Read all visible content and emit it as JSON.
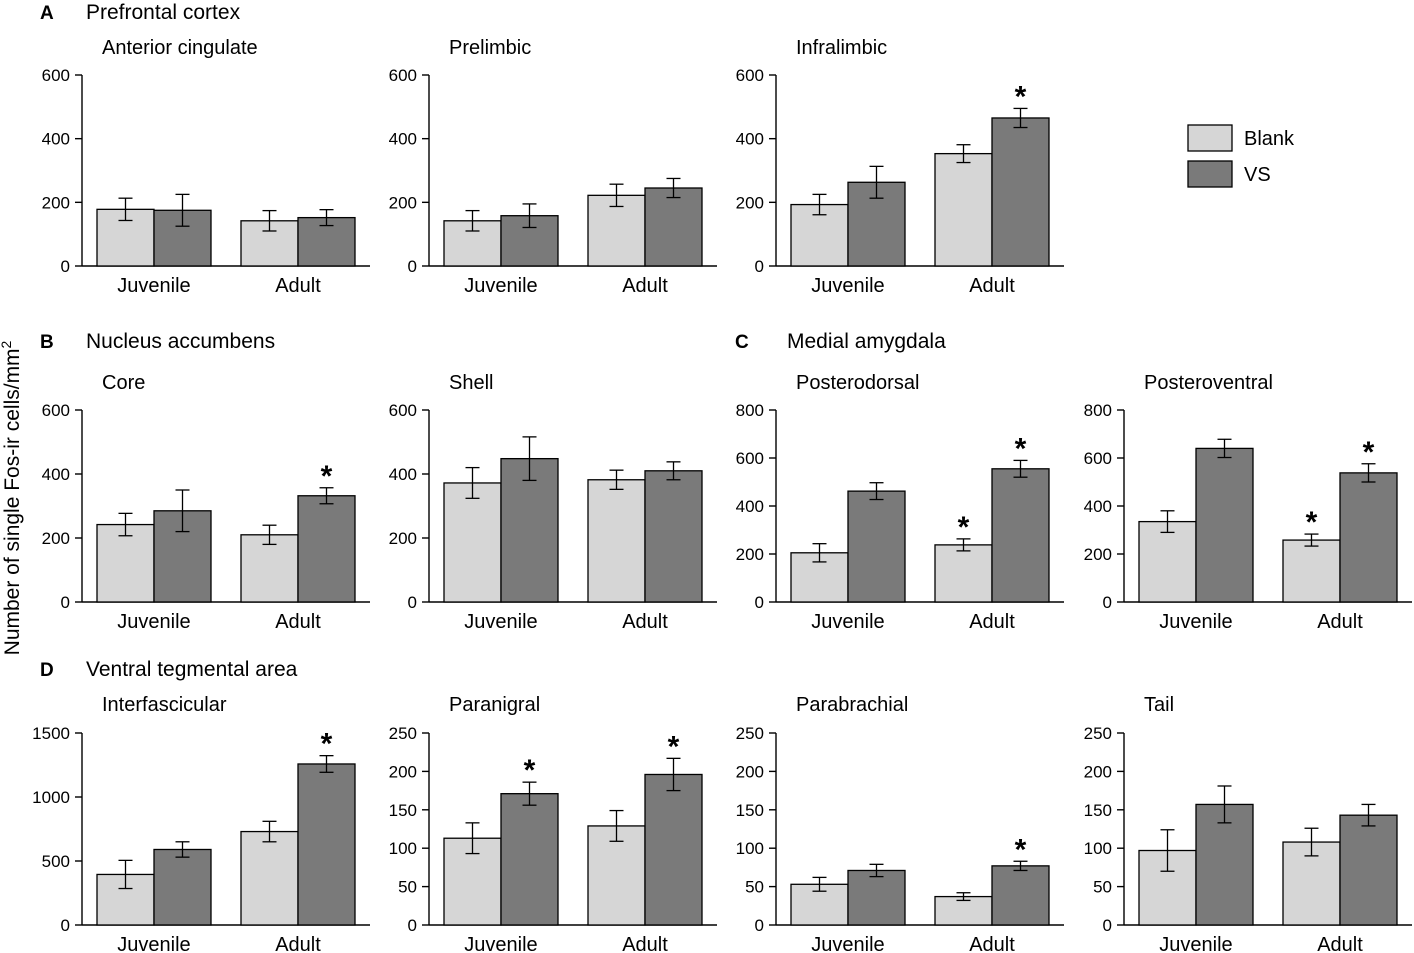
{
  "figure": {
    "y_axis_label": "Number of single Fos-ir cells/mm",
    "y_axis_label_superscript": "2",
    "legend": [
      {
        "name": "Blank",
        "color": "#d6d6d6"
      },
      {
        "name": "VS",
        "color": "#7a7a7a"
      }
    ],
    "significance_marker": "*",
    "sections": [
      {
        "letter": "A",
        "title": "Prefrontal cortex"
      },
      {
        "letter": "B",
        "title": "Nucleus accumbens"
      },
      {
        "letter": "C",
        "title": "Medial amygdala"
      },
      {
        "letter": "D",
        "title": "Ventral tegmental area"
      }
    ]
  },
  "chart_data": [
    {
      "type": "bar",
      "section": "A",
      "title": "Anterior cingulate",
      "categories": [
        "Juvenile",
        "Adult"
      ],
      "ylim": [
        0,
        600
      ],
      "yticks": [
        0,
        200,
        400,
        600
      ],
      "series": [
        {
          "name": "Blank",
          "values": [
            178,
            142
          ],
          "errors": [
            35,
            32
          ]
        },
        {
          "name": "VS",
          "values": [
            175,
            152
          ],
          "errors": [
            50,
            25
          ]
        }
      ],
      "significant": [
        [
          false,
          false
        ],
        [
          false,
          false
        ]
      ]
    },
    {
      "type": "bar",
      "section": "A",
      "title": "Prelimbic",
      "categories": [
        "Juvenile",
        "Adult"
      ],
      "ylim": [
        0,
        600
      ],
      "yticks": [
        0,
        200,
        400,
        600
      ],
      "series": [
        {
          "name": "Blank",
          "values": [
            142,
            222
          ],
          "errors": [
            32,
            35
          ]
        },
        {
          "name": "VS",
          "values": [
            158,
            245
          ],
          "errors": [
            37,
            30
          ]
        }
      ],
      "significant": [
        [
          false,
          false
        ],
        [
          false,
          false
        ]
      ]
    },
    {
      "type": "bar",
      "section": "A",
      "title": "Infralimbic",
      "categories": [
        "Juvenile",
        "Adult"
      ],
      "ylim": [
        0,
        600
      ],
      "yticks": [
        0,
        200,
        400,
        600
      ],
      "series": [
        {
          "name": "Blank",
          "values": [
            193,
            353
          ],
          "errors": [
            32,
            28
          ]
        },
        {
          "name": "VS",
          "values": [
            263,
            465
          ],
          "errors": [
            50,
            30
          ]
        }
      ],
      "significant": [
        [
          false,
          false
        ],
        [
          false,
          true
        ]
      ]
    },
    {
      "type": "bar",
      "section": "B",
      "title": "Core",
      "categories": [
        "Juvenile",
        "Adult"
      ],
      "ylim": [
        0,
        600
      ],
      "yticks": [
        0,
        200,
        400,
        600
      ],
      "series": [
        {
          "name": "Blank",
          "values": [
            242,
            210
          ],
          "errors": [
            35,
            30
          ]
        },
        {
          "name": "VS",
          "values": [
            285,
            332
          ],
          "errors": [
            65,
            25
          ]
        }
      ],
      "significant": [
        [
          false,
          false
        ],
        [
          false,
          true
        ]
      ]
    },
    {
      "type": "bar",
      "section": "B",
      "title": "Shell",
      "categories": [
        "Juvenile",
        "Adult"
      ],
      "ylim": [
        0,
        600
      ],
      "yticks": [
        0,
        200,
        400,
        600
      ],
      "series": [
        {
          "name": "Blank",
          "values": [
            372,
            382
          ],
          "errors": [
            48,
            30
          ]
        },
        {
          "name": "VS",
          "values": [
            448,
            410
          ],
          "errors": [
            68,
            28
          ]
        }
      ],
      "significant": [
        [
          false,
          false
        ],
        [
          false,
          false
        ]
      ]
    },
    {
      "type": "bar",
      "section": "C",
      "title": "Posterodorsal",
      "categories": [
        "Juvenile",
        "Adult"
      ],
      "ylim": [
        0,
        800
      ],
      "yticks": [
        0,
        200,
        400,
        600,
        800
      ],
      "series": [
        {
          "name": "Blank",
          "values": [
            205,
            238
          ],
          "errors": [
            38,
            25
          ]
        },
        {
          "name": "VS",
          "values": [
            462,
            555
          ],
          "errors": [
            35,
            35
          ]
        }
      ],
      "significant": [
        [
          false,
          true
        ],
        [
          false,
          true
        ]
      ]
    },
    {
      "type": "bar",
      "section": "C",
      "title": "Posteroventral",
      "categories": [
        "Juvenile",
        "Adult"
      ],
      "ylim": [
        0,
        800
      ],
      "yticks": [
        0,
        200,
        400,
        600,
        800
      ],
      "series": [
        {
          "name": "Blank",
          "values": [
            335,
            258
          ],
          "errors": [
            45,
            25
          ]
        },
        {
          "name": "VS",
          "values": [
            640,
            538
          ],
          "errors": [
            38,
            38
          ]
        }
      ],
      "significant": [
        [
          false,
          true
        ],
        [
          false,
          true
        ]
      ]
    },
    {
      "type": "bar",
      "section": "D",
      "title": "Interfascicular",
      "categories": [
        "Juvenile",
        "Adult"
      ],
      "ylim": [
        0,
        1500
      ],
      "yticks": [
        0,
        500,
        1000,
        1500
      ],
      "series": [
        {
          "name": "Blank",
          "values": [
            395,
            730
          ],
          "errors": [
            110,
            80
          ]
        },
        {
          "name": "VS",
          "values": [
            590,
            1258
          ],
          "errors": [
            60,
            65
          ]
        }
      ],
      "significant": [
        [
          false,
          false
        ],
        [
          false,
          true
        ]
      ]
    },
    {
      "type": "bar",
      "section": "D",
      "title": "Paranigral",
      "categories": [
        "Juvenile",
        "Adult"
      ],
      "ylim": [
        0,
        250
      ],
      "yticks": [
        0,
        50,
        100,
        150,
        200,
        250
      ],
      "series": [
        {
          "name": "Blank",
          "values": [
            113,
            129
          ],
          "errors": [
            20,
            20
          ]
        },
        {
          "name": "VS",
          "values": [
            171,
            196
          ],
          "errors": [
            15,
            21
          ]
        }
      ],
      "significant": [
        [
          false,
          false
        ],
        [
          true,
          true
        ]
      ]
    },
    {
      "type": "bar",
      "section": "D",
      "title": "Parabrachial",
      "categories": [
        "Juvenile",
        "Adult"
      ],
      "ylim": [
        0,
        250
      ],
      "yticks": [
        0,
        50,
        100,
        150,
        200,
        250
      ],
      "series": [
        {
          "name": "Blank",
          "values": [
            53,
            37
          ],
          "errors": [
            9,
            5
          ]
        },
        {
          "name": "VS",
          "values": [
            71,
            77
          ],
          "errors": [
            8,
            6
          ]
        }
      ],
      "significant": [
        [
          false,
          false
        ],
        [
          false,
          true
        ]
      ]
    },
    {
      "type": "bar",
      "section": "D",
      "title": "Tail",
      "categories": [
        "Juvenile",
        "Adult"
      ],
      "ylim": [
        0,
        250
      ],
      "yticks": [
        0,
        50,
        100,
        150,
        200,
        250
      ],
      "series": [
        {
          "name": "Blank",
          "values": [
            97,
            108
          ],
          "errors": [
            27,
            18
          ]
        },
        {
          "name": "VS",
          "values": [
            157,
            143
          ],
          "errors": [
            24,
            14
          ]
        }
      ],
      "significant": [
        [
          false,
          false
        ],
        [
          false,
          false
        ]
      ]
    }
  ]
}
